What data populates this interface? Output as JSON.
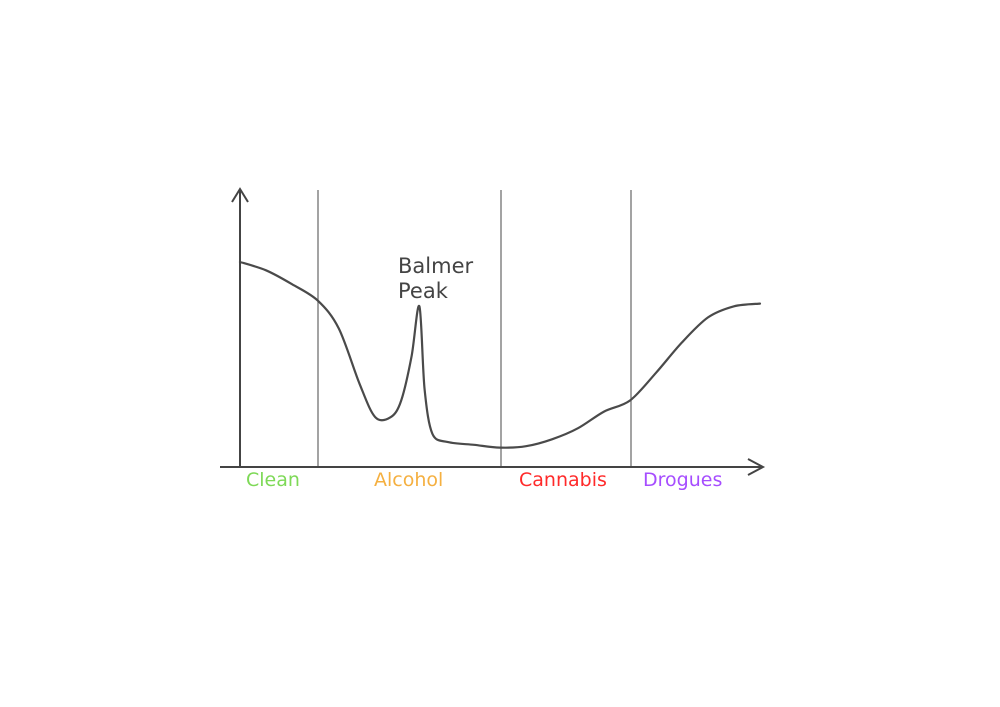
{
  "chart_data": {
    "type": "line",
    "title": "",
    "xlabel": "",
    "ylabel": "",
    "annotation": {
      "lines": [
        "Balmer",
        "Peak"
      ],
      "x": 0.38
    },
    "categories": [
      {
        "label": "Clean",
        "color": "#7ed957",
        "start": 0.0,
        "end": 0.15
      },
      {
        "label": "Alcohol",
        "color": "#f5b041",
        "start": 0.15,
        "end": 0.5
      },
      {
        "label": "Cannabis",
        "color": "#ff2a2a",
        "start": 0.5,
        "end": 0.75
      },
      {
        "label": "Drogues",
        "color": "#a64dff",
        "start": 0.75,
        "end": 1.0
      }
    ],
    "series": [
      {
        "points": [
          [
            0.0,
            0.74
          ],
          [
            0.05,
            0.71
          ],
          [
            0.1,
            0.66
          ],
          [
            0.15,
            0.6
          ],
          [
            0.19,
            0.5
          ],
          [
            0.23,
            0.3
          ],
          [
            0.26,
            0.18
          ],
          [
            0.29,
            0.18
          ],
          [
            0.31,
            0.24
          ],
          [
            0.33,
            0.4
          ],
          [
            0.345,
            0.58
          ],
          [
            0.355,
            0.28
          ],
          [
            0.37,
            0.12
          ],
          [
            0.4,
            0.09
          ],
          [
            0.45,
            0.08
          ],
          [
            0.5,
            0.07
          ],
          [
            0.55,
            0.075
          ],
          [
            0.6,
            0.1
          ],
          [
            0.65,
            0.14
          ],
          [
            0.7,
            0.2
          ],
          [
            0.75,
            0.24
          ],
          [
            0.8,
            0.34
          ],
          [
            0.85,
            0.45
          ],
          [
            0.9,
            0.54
          ],
          [
            0.95,
            0.58
          ],
          [
            1.0,
            0.59
          ]
        ]
      }
    ],
    "xlim": [
      0,
      1
    ],
    "ylim": [
      0,
      1
    ],
    "grid": false,
    "colors": {
      "axis": "#444444",
      "curve": "#4a4a4a",
      "divider": "#666666"
    }
  }
}
